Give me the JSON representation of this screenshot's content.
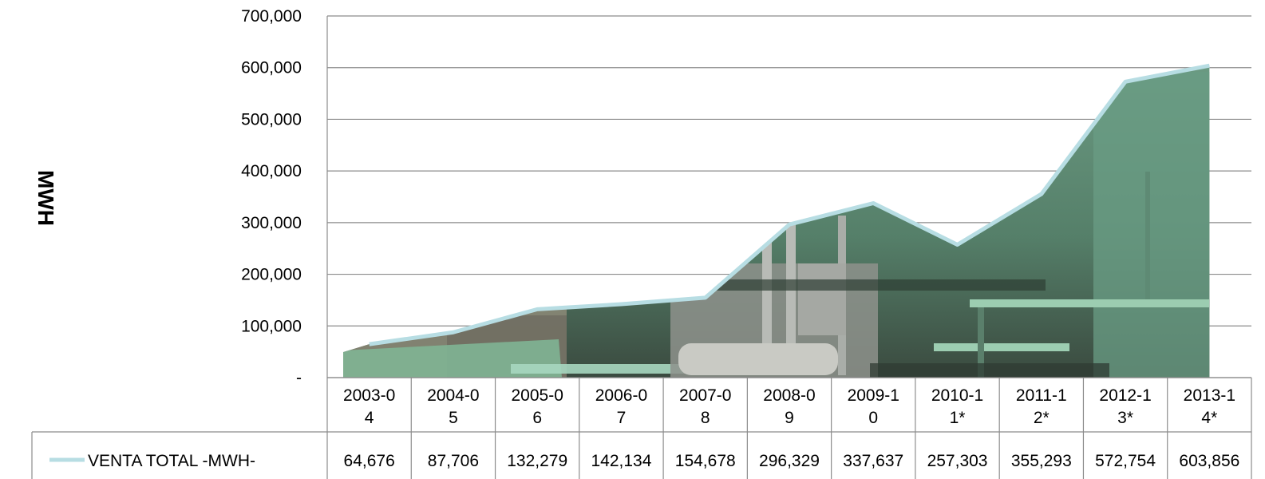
{
  "chart_data": {
    "type": "area",
    "ylabel": "MWH",
    "ylim": [
      0,
      700000
    ],
    "y_ticks": [
      {
        "value": 0,
        "label": "-"
      },
      {
        "value": 100000,
        "label": "100,000"
      },
      {
        "value": 200000,
        "label": "200,000"
      },
      {
        "value": 300000,
        "label": "300,000"
      },
      {
        "value": 400000,
        "label": "400,000"
      },
      {
        "value": 500000,
        "label": "500,000"
      },
      {
        "value": 600000,
        "label": "600,000"
      },
      {
        "value": 700000,
        "label": "700,000"
      }
    ],
    "categories": [
      [
        "2003-0",
        "4"
      ],
      [
        "2004-0",
        "5"
      ],
      [
        "2005-0",
        "6"
      ],
      [
        "2006-0",
        "7"
      ],
      [
        "2007-0",
        "8"
      ],
      [
        "2008-0",
        "9"
      ],
      [
        "2009-1",
        "0"
      ],
      [
        "2010-1",
        "1*"
      ],
      [
        "2011-1",
        "2*"
      ],
      [
        "2012-1",
        "3*"
      ],
      [
        "2013-1",
        "4*"
      ]
    ],
    "series": [
      {
        "name": "VENTA TOTAL -MWH-",
        "values": [
          64676,
          87706,
          132279,
          142134,
          154678,
          296329,
          337637,
          257303,
          355293,
          572754,
          603856
        ],
        "labels": [
          "64,676",
          "87,706",
          "132,279",
          "142,134",
          "154,678",
          "296,329",
          "337,637",
          "257,303",
          "355,293",
          "572,754",
          "603,856"
        ],
        "line_color": "#b7dde3"
      }
    ],
    "grid": true,
    "data_table": true,
    "fill": "photo-texture",
    "colors": {
      "gridline": "#8c8c8c",
      "fill_green": "#5f8f77",
      "fill_dark": "#33463a",
      "machine_gray": "#9a9c98",
      "rail_green": "#8fc3a4"
    }
  }
}
